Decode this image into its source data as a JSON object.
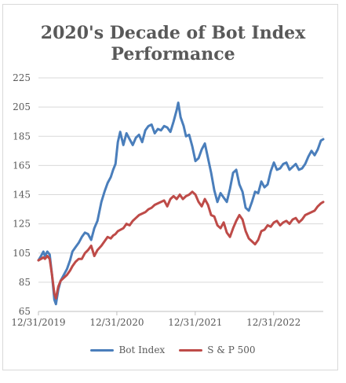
{
  "chart_data": {
    "type": "line",
    "title_line1": "2020's Decade of Bot Index",
    "title_line2": "Performance",
    "xlabel": "",
    "ylabel": "",
    "ylim": [
      65,
      225
    ],
    "yticks": [
      65,
      85,
      105,
      125,
      145,
      165,
      185,
      205,
      225
    ],
    "xticks": [
      "12/31/2019",
      "12/31/2020",
      "12/31/2021",
      "12/31/2022"
    ],
    "xrange_years": [
      2019.917,
      2023.55
    ],
    "grid": "horizontal",
    "legend_position": "bottom",
    "series": [
      {
        "name": "Bot Index",
        "color": "#4a7ebb",
        "points": [
          [
            2019.917,
            100
          ],
          [
            2019.95,
            103
          ],
          [
            2019.98,
            106
          ],
          [
            2020.0,
            103
          ],
          [
            2020.03,
            106
          ],
          [
            2020.06,
            104
          ],
          [
            2020.09,
            90
          ],
          [
            2020.12,
            73
          ],
          [
            2020.14,
            70
          ],
          [
            2020.17,
            80
          ],
          [
            2020.2,
            86
          ],
          [
            2020.24,
            90
          ],
          [
            2020.28,
            94
          ],
          [
            2020.32,
            100
          ],
          [
            2020.35,
            106
          ],
          [
            2020.39,
            109
          ],
          [
            2020.43,
            112
          ],
          [
            2020.47,
            116
          ],
          [
            2020.51,
            119
          ],
          [
            2020.55,
            118
          ],
          [
            2020.59,
            114
          ],
          [
            2020.63,
            122
          ],
          [
            2020.67,
            127
          ],
          [
            2020.72,
            140
          ],
          [
            2020.76,
            147
          ],
          [
            2020.8,
            153
          ],
          [
            2020.84,
            157
          ],
          [
            2020.87,
            162
          ],
          [
            2020.9,
            166
          ],
          [
            2020.93,
            181
          ],
          [
            2020.96,
            188
          ],
          [
            2021.0,
            179
          ],
          [
            2021.04,
            187
          ],
          [
            2021.08,
            183
          ],
          [
            2021.12,
            179
          ],
          [
            2021.16,
            184
          ],
          [
            2021.2,
            186
          ],
          [
            2021.24,
            181
          ],
          [
            2021.28,
            189
          ],
          [
            2021.32,
            192
          ],
          [
            2021.36,
            193
          ],
          [
            2021.4,
            187
          ],
          [
            2021.44,
            190
          ],
          [
            2021.48,
            189
          ],
          [
            2021.52,
            192
          ],
          [
            2021.56,
            191
          ],
          [
            2021.6,
            188
          ],
          [
            2021.64,
            195
          ],
          [
            2021.68,
            203
          ],
          [
            2021.7,
            208
          ],
          [
            2021.73,
            198
          ],
          [
            2021.77,
            192
          ],
          [
            2021.8,
            185
          ],
          [
            2021.84,
            186
          ],
          [
            2021.88,
            178
          ],
          [
            2021.92,
            168
          ],
          [
            2021.96,
            170
          ],
          [
            2022.0,
            176
          ],
          [
            2022.04,
            180
          ],
          [
            2022.08,
            170
          ],
          [
            2022.12,
            160
          ],
          [
            2022.16,
            148
          ],
          [
            2022.2,
            140
          ],
          [
            2022.24,
            146
          ],
          [
            2022.28,
            143
          ],
          [
            2022.32,
            140
          ],
          [
            2022.36,
            149
          ],
          [
            2022.4,
            160
          ],
          [
            2022.44,
            162
          ],
          [
            2022.48,
            152
          ],
          [
            2022.52,
            147
          ],
          [
            2022.56,
            136
          ],
          [
            2022.6,
            134
          ],
          [
            2022.64,
            140
          ],
          [
            2022.68,
            147
          ],
          [
            2022.72,
            146
          ],
          [
            2022.76,
            154
          ],
          [
            2022.8,
            150
          ],
          [
            2022.84,
            152
          ],
          [
            2022.88,
            161
          ],
          [
            2022.92,
            167
          ],
          [
            2022.96,
            162
          ],
          [
            2023.0,
            163
          ],
          [
            2023.04,
            166
          ],
          [
            2023.08,
            167
          ],
          [
            2023.12,
            162
          ],
          [
            2023.16,
            164
          ],
          [
            2023.2,
            166
          ],
          [
            2023.24,
            162
          ],
          [
            2023.28,
            163
          ],
          [
            2023.32,
            166
          ],
          [
            2023.36,
            171
          ],
          [
            2023.4,
            175
          ],
          [
            2023.44,
            172
          ],
          [
            2023.48,
            176
          ],
          [
            2023.52,
            182
          ],
          [
            2023.55,
            183
          ]
        ]
      },
      {
        "name": "S & P 500",
        "color": "#be4b48",
        "points": [
          [
            2019.917,
            100
          ],
          [
            2019.95,
            101
          ],
          [
            2019.98,
            102
          ],
          [
            2020.0,
            101
          ],
          [
            2020.03,
            103
          ],
          [
            2020.06,
            101
          ],
          [
            2020.09,
            90
          ],
          [
            2020.12,
            77
          ],
          [
            2020.14,
            74
          ],
          [
            2020.17,
            82
          ],
          [
            2020.2,
            86
          ],
          [
            2020.24,
            88
          ],
          [
            2020.28,
            90
          ],
          [
            2020.32,
            93
          ],
          [
            2020.35,
            96
          ],
          [
            2020.39,
            99
          ],
          [
            2020.43,
            101
          ],
          [
            2020.47,
            101
          ],
          [
            2020.51,
            105
          ],
          [
            2020.55,
            107
          ],
          [
            2020.59,
            110
          ],
          [
            2020.63,
            103
          ],
          [
            2020.67,
            107
          ],
          [
            2020.72,
            110
          ],
          [
            2020.76,
            113
          ],
          [
            2020.8,
            116
          ],
          [
            2020.84,
            115
          ],
          [
            2020.87,
            117
          ],
          [
            2020.9,
            118
          ],
          [
            2020.93,
            120
          ],
          [
            2021.0,
            122
          ],
          [
            2021.04,
            125
          ],
          [
            2021.08,
            124
          ],
          [
            2021.12,
            127
          ],
          [
            2021.16,
            129
          ],
          [
            2021.2,
            131
          ],
          [
            2021.24,
            132
          ],
          [
            2021.28,
            133
          ],
          [
            2021.32,
            135
          ],
          [
            2021.36,
            136
          ],
          [
            2021.4,
            138
          ],
          [
            2021.44,
            139
          ],
          [
            2021.48,
            140
          ],
          [
            2021.52,
            141
          ],
          [
            2021.56,
            137
          ],
          [
            2021.6,
            142
          ],
          [
            2021.64,
            144
          ],
          [
            2021.68,
            142
          ],
          [
            2021.72,
            145
          ],
          [
            2021.76,
            142
          ],
          [
            2021.8,
            144
          ],
          [
            2021.84,
            145
          ],
          [
            2021.88,
            147
          ],
          [
            2021.92,
            145
          ],
          [
            2021.96,
            140
          ],
          [
            2022.0,
            137
          ],
          [
            2022.04,
            142
          ],
          [
            2022.08,
            138
          ],
          [
            2022.12,
            131
          ],
          [
            2022.16,
            130
          ],
          [
            2022.2,
            124
          ],
          [
            2022.24,
            122
          ],
          [
            2022.28,
            126
          ],
          [
            2022.32,
            119
          ],
          [
            2022.36,
            116
          ],
          [
            2022.4,
            122
          ],
          [
            2022.44,
            127
          ],
          [
            2022.48,
            131
          ],
          [
            2022.52,
            128
          ],
          [
            2022.56,
            120
          ],
          [
            2022.6,
            115
          ],
          [
            2022.64,
            113
          ],
          [
            2022.68,
            111
          ],
          [
            2022.72,
            114
          ],
          [
            2022.76,
            120
          ],
          [
            2022.8,
            121
          ],
          [
            2022.84,
            124
          ],
          [
            2022.88,
            123
          ],
          [
            2022.92,
            126
          ],
          [
            2022.96,
            127
          ],
          [
            2023.0,
            124
          ],
          [
            2023.04,
            126
          ],
          [
            2023.08,
            127
          ],
          [
            2023.12,
            125
          ],
          [
            2023.16,
            128
          ],
          [
            2023.2,
            129
          ],
          [
            2023.24,
            126
          ],
          [
            2023.28,
            128
          ],
          [
            2023.32,
            131
          ],
          [
            2023.36,
            132
          ],
          [
            2023.4,
            133
          ],
          [
            2023.44,
            134
          ],
          [
            2023.48,
            137
          ],
          [
            2023.52,
            139
          ],
          [
            2023.55,
            140
          ]
        ]
      }
    ]
  }
}
